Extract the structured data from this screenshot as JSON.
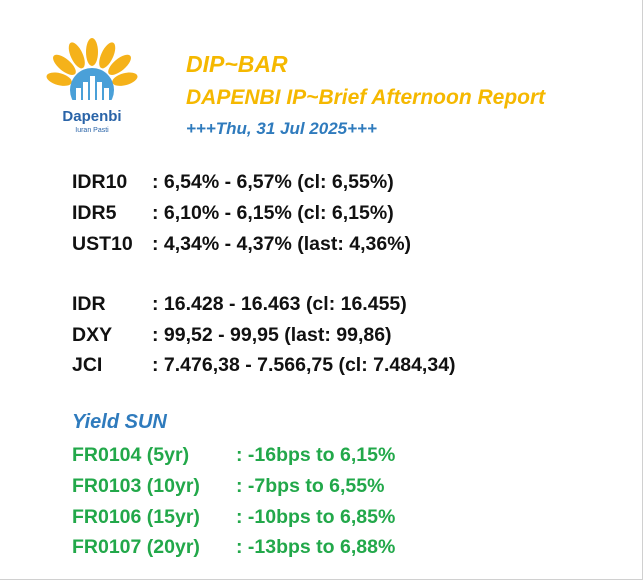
{
  "logo": {
    "name": "Dapenbi",
    "tagline": "Iuran Pasti",
    "colors": {
      "petal": "#f5b21a",
      "blue": "#2a64a8"
    }
  },
  "header": {
    "title": "DIP~BAR",
    "subtitle": "DAPENBI IP~Brief Afternoon Report",
    "date": "+++Thu, 31 Jul 2025+++"
  },
  "bonds": [
    {
      "label": "IDR10",
      "value": ": 6,54% - 6,57% (cl: 6,55%)"
    },
    {
      "label": "IDR5",
      "value": ": 6,10% - 6,15% (cl: 6,15%)"
    },
    {
      "label": "UST10",
      "value": ": 4,34% - 4,37% (last: 4,36%)"
    }
  ],
  "markets": [
    {
      "label": "IDR",
      "value": ": 16.428 - 16.463 (cl: 16.455)"
    },
    {
      "label": "DXY",
      "value": ": 99,52 - 99,95 (last: 99,86)"
    },
    {
      "label": "JCI",
      "value": ": 7.476,38 - 7.566,75 (cl: 7.484,34)"
    }
  ],
  "yield_sun": {
    "title": "Yield SUN",
    "items": [
      {
        "label": "FR0104 (5yr)",
        "value": ": -16bps to 6,15%"
      },
      {
        "label": "FR0103 (10yr)",
        "value": ": -7bps to 6,55%"
      },
      {
        "label": "FR0106 (15yr)",
        "value": ": -10bps to 6,85%"
      },
      {
        "label": "FR0107 (20yr)",
        "value": ": -13bps to 6,88%"
      }
    ]
  },
  "colors": {
    "header_yellow": "#f5b800",
    "accent_blue": "#2f7bbd",
    "positive_green": "#22a84a",
    "text": "#111111"
  }
}
